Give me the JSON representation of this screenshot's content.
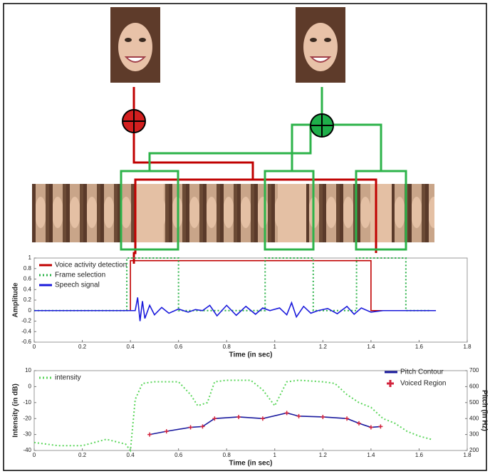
{
  "chart_data": [
    {
      "type": "line",
      "ylabel": "Amplitude",
      "xlabel": "Time (in sec)",
      "xlim": [
        0,
        1.8
      ],
      "xticks": [
        0,
        0.2,
        0.4,
        0.6,
        0.8,
        1,
        1.2,
        1.4,
        1.6,
        1.8
      ],
      "ylim": [
        -0.6,
        1
      ],
      "yticks": [
        -0.6,
        -0.4,
        -0.2,
        0,
        0.2,
        0.4,
        0.6,
        0.8,
        1
      ],
      "grid": false,
      "legend": "upper left",
      "series": [
        {
          "name": "Voice activity detection",
          "color": "#c00000",
          "style": "solid",
          "x": [
            0,
            0.4,
            0.4,
            1.4,
            1.4,
            1.65
          ],
          "values": [
            0,
            0,
            0.95,
            0.95,
            0,
            0
          ]
        },
        {
          "name": "Frame selection",
          "color": "#2db34a",
          "style": "dotted",
          "x": [
            0,
            0.385,
            0.385,
            0.6,
            0.6,
            0.96,
            0.96,
            1.16,
            1.16,
            1.34,
            1.34,
            1.545,
            1.545,
            1.65
          ],
          "values": [
            0,
            0,
            1,
            1,
            0,
            0,
            1,
            1,
            0,
            0,
            1,
            1,
            0,
            0
          ]
        },
        {
          "name": "Speech signal",
          "color": "#1a1adb",
          "style": "solid",
          "x": [
            0,
            0.42,
            0.43,
            0.44,
            0.45,
            0.46,
            0.48,
            0.5,
            0.53,
            0.56,
            0.6,
            0.64,
            0.67,
            0.7,
            0.73,
            0.76,
            0.8,
            0.84,
            0.88,
            0.92,
            0.95,
            0.98,
            1.02,
            1.05,
            1.07,
            1.09,
            1.12,
            1.15,
            1.18,
            1.22,
            1.26,
            1.3,
            1.33,
            1.36,
            1.4,
            1.45,
            1.67
          ],
          "values": [
            0,
            0,
            0.25,
            -0.2,
            0.18,
            -0.15,
            0.1,
            -0.08,
            0.06,
            -0.05,
            0.03,
            -0.03,
            0.02,
            0,
            0.1,
            -0.1,
            0.1,
            -0.09,
            0.08,
            -0.07,
            0.05,
            0,
            0.05,
            -0.08,
            0.15,
            -0.12,
            0.08,
            -0.05,
            0,
            0.04,
            -0.06,
            0.08,
            -0.07,
            0.05,
            -0.03,
            0,
            0
          ]
        }
      ]
    },
    {
      "type": "line",
      "ylabel": "Intensity (in dB)",
      "y2label": "Pitch (in Hz)",
      "xlabel": "Time (in sec)",
      "xlim": [
        0,
        1.8
      ],
      "xticks": [
        0,
        0.2,
        0.4,
        0.6,
        0.8,
        1,
        1.2,
        1.4,
        1.6,
        1.8
      ],
      "ylim": [
        -40,
        10
      ],
      "yticks": [
        -40,
        -30,
        -20,
        -10,
        0,
        10
      ],
      "y2lim": [
        200,
        700
      ],
      "y2ticks": [
        200,
        300,
        400,
        500,
        600,
        700
      ],
      "grid": false,
      "series": [
        {
          "name": "intensity",
          "color": "#5cd65c",
          "style": "dotted",
          "x": [
            0,
            0.1,
            0.2,
            0.3,
            0.38,
            0.4,
            0.42,
            0.45,
            0.5,
            0.6,
            0.65,
            0.68,
            0.72,
            0.75,
            0.8,
            0.9,
            0.95,
            1,
            1.05,
            1.1,
            1.2,
            1.25,
            1.3,
            1.35,
            1.4,
            1.45,
            1.5,
            1.55,
            1.6,
            1.65
          ],
          "values": [
            -35,
            -37,
            -37,
            -33,
            -36,
            -40,
            -8,
            2,
            3,
            3,
            -5,
            -12,
            -10,
            3,
            4,
            4,
            -2,
            -12,
            3,
            4,
            3,
            2,
            -5,
            -10,
            -13,
            -20,
            -23,
            -28,
            -31,
            -33
          ]
        },
        {
          "name": "Pitch Contour",
          "color": "#1a1a9e",
          "style": "solid",
          "axis": "y2",
          "x": [
            0.48,
            0.55,
            0.65,
            0.7,
            0.75,
            0.85,
            0.95,
            1.05,
            1.1,
            1.2,
            1.3,
            1.35,
            1.4,
            1.44
          ],
          "values": [
            300,
            320,
            345,
            350,
            400,
            410,
            400,
            435,
            415,
            410,
            400,
            370,
            345,
            350
          ]
        },
        {
          "name": "Voiced Region",
          "color": "#d2233c",
          "style": "plus",
          "axis": "y2",
          "x": [
            0.48,
            0.55,
            0.65,
            0.7,
            0.75,
            0.85,
            0.95,
            1.05,
            1.1,
            1.2,
            1.3,
            1.35,
            1.4,
            1.44
          ],
          "values": [
            300,
            320,
            345,
            350,
            400,
            410,
            400,
            435,
            415,
            410,
            400,
            370,
            345,
            350
          ]
        }
      ]
    }
  ]
}
